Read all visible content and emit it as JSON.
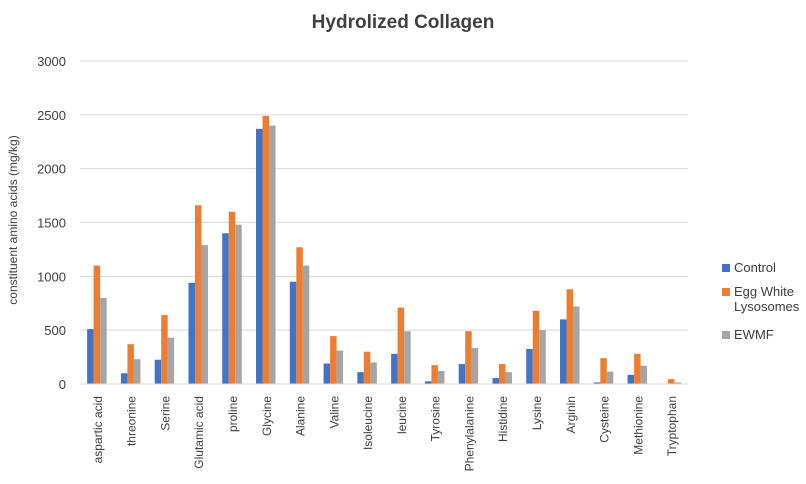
{
  "chart_data": {
    "type": "bar",
    "title": "Hydrolized Collagen",
    "xlabel": "",
    "ylabel": "constituent amino acids (mg/kg)",
    "ylim": [
      0,
      3000
    ],
    "yticks": [
      0,
      500,
      1000,
      1500,
      2000,
      2500,
      3000
    ],
    "grid": true,
    "legend_position": "right",
    "categories": [
      "aspartic acid",
      "threonine",
      "Serine",
      "Glutamic acid",
      "proline",
      "Glycine",
      "Alanine",
      "Valine",
      "Isoleucine",
      "leucine",
      "Tyrosine",
      "Phenylalanine",
      "Histidine",
      "Lysine",
      "Arginin",
      "Cysteine",
      "Methionine",
      "Tryptophan"
    ],
    "series": [
      {
        "name": "Control",
        "color": "#4472C4",
        "values": [
          510,
          100,
          225,
          940,
          1400,
          2370,
          950,
          190,
          110,
          280,
          25,
          185,
          55,
          325,
          600,
          15,
          85,
          0
        ]
      },
      {
        "name": "Egg White Lysosomes",
        "color": "#ED7D31",
        "values": [
          1100,
          370,
          640,
          1660,
          1600,
          2490,
          1270,
          445,
          300,
          710,
          175,
          490,
          185,
          680,
          880,
          240,
          280,
          45
        ]
      },
      {
        "name": "EWMF",
        "color": "#A5A5A5",
        "values": [
          800,
          230,
          430,
          1290,
          1480,
          2400,
          1100,
          310,
          200,
          490,
          120,
          335,
          110,
          500,
          720,
          115,
          170,
          15
        ]
      }
    ]
  }
}
